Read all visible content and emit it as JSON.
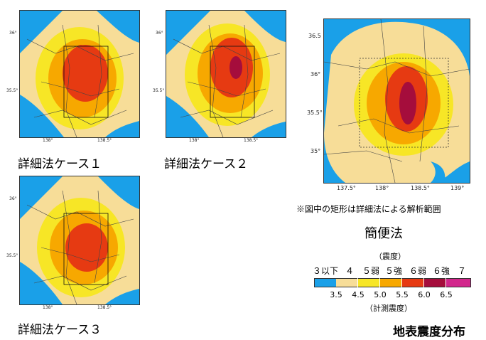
{
  "detailed_maps": [
    {
      "caption": "詳細法ケース１",
      "y_ticks": [
        "36°",
        "35.5°"
      ],
      "x_ticks": [
        "138°",
        "138.5°"
      ]
    },
    {
      "caption": "詳細法ケース２",
      "y_ticks": [
        "36°",
        "35.5°"
      ],
      "x_ticks": [
        "138°",
        "138.5°"
      ]
    },
    {
      "caption": "詳細法ケース３",
      "y_ticks": [
        "36°",
        "35.5°"
      ],
      "x_ticks": [
        "138°",
        "138.5°"
      ]
    }
  ],
  "simple_map": {
    "caption": "簡便法",
    "note": "※図中の矩形は詳細法による解析範囲",
    "y_ticks": [
      "36.5",
      "36°",
      "35.5°",
      "35°"
    ],
    "x_ticks": [
      "137.5°",
      "138°",
      "138.5°",
      "139°"
    ]
  },
  "legend": {
    "top_label": "（震度）",
    "classes": [
      "３以下",
      "４",
      "５弱",
      "５強",
      "６弱",
      "６強",
      "７"
    ],
    "thresholds": [
      "3.5",
      "4.5",
      "5.0",
      "5.5",
      "6.0",
      "6.5"
    ],
    "bottom_label": "（計測震度）",
    "colors": [
      "#1aa0e8",
      "#f7dd98",
      "#f7e626",
      "#f7a800",
      "#e63a12",
      "#a50d3c",
      "#d2278c"
    ]
  },
  "map_title": "地表震度分布"
}
